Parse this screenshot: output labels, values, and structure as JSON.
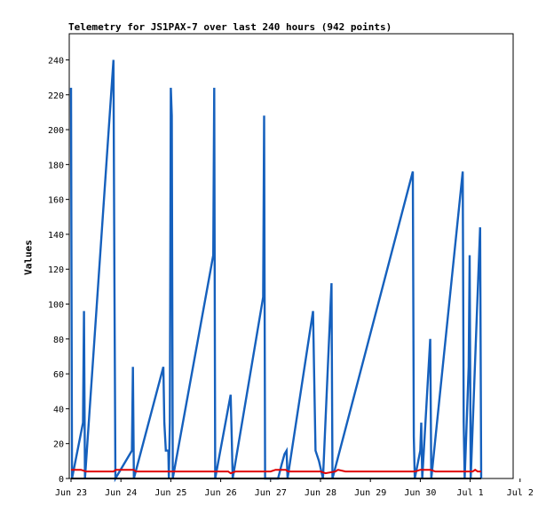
{
  "chart_data": {
    "type": "line",
    "title": "Telemetry for JS1PAX-7 over last 240 hours (942 points)",
    "xlabel": "",
    "ylabel": "Values",
    "x_ticks": [
      "Jun 23",
      "Jun 24",
      "Jun 25",
      "Jun 26",
      "Jun 27",
      "Jun 28",
      "Jun 29",
      "Jun 30",
      "Jul 1",
      "Jul 2"
    ],
    "y_ticks": [
      0,
      20,
      40,
      60,
      80,
      100,
      120,
      140,
      160,
      180,
      200,
      220,
      240
    ],
    "xlim": [
      0,
      9.0
    ],
    "ylim": [
      0,
      255
    ],
    "grid": false,
    "series": [
      {
        "color": "#1560bd",
        "points": [
          [
            0.0,
            224
          ],
          [
            0.02,
            0
          ],
          [
            0.24,
            32
          ],
          [
            0.26,
            96
          ],
          [
            0.28,
            0
          ],
          [
            0.85,
            240
          ],
          [
            0.87,
            112
          ],
          [
            0.89,
            0
          ],
          [
            1.22,
            16
          ],
          [
            1.24,
            64
          ],
          [
            1.26,
            0
          ],
          [
            1.85,
            64
          ],
          [
            1.87,
            32
          ],
          [
            1.9,
            16
          ],
          [
            1.95,
            16
          ],
          [
            1.96,
            0
          ],
          [
            1.98,
            32
          ],
          [
            2.0,
            224
          ],
          [
            2.02,
            208
          ],
          [
            2.04,
            0
          ],
          [
            2.85,
            128
          ],
          [
            2.87,
            224
          ],
          [
            2.89,
            0
          ],
          [
            3.2,
            48
          ],
          [
            3.22,
            24
          ],
          [
            3.24,
            0
          ],
          [
            3.85,
            104
          ],
          [
            3.87,
            208
          ],
          [
            3.89,
            0
          ],
          [
            4.15,
            0
          ],
          [
            4.22,
            8
          ],
          [
            4.28,
            14
          ],
          [
            4.32,
            16
          ],
          [
            4.34,
            0
          ],
          [
            4.85,
            96
          ],
          [
            4.87,
            64
          ],
          [
            4.9,
            16
          ],
          [
            4.97,
            10
          ],
          [
            5.05,
            0
          ],
          [
            5.22,
            112
          ],
          [
            5.24,
            0
          ],
          [
            6.85,
            176
          ],
          [
            6.87,
            24
          ],
          [
            6.89,
            0
          ],
          [
            7.0,
            16
          ],
          [
            7.02,
            32
          ],
          [
            7.04,
            0
          ],
          [
            7.2,
            80
          ],
          [
            7.22,
            0
          ],
          [
            7.85,
            176
          ],
          [
            7.87,
            32
          ],
          [
            7.89,
            0
          ],
          [
            7.97,
            64
          ],
          [
            7.99,
            128
          ],
          [
            8.01,
            0
          ],
          [
            8.2,
            144
          ],
          [
            8.22,
            0
          ]
        ]
      },
      {
        "color": "#e00000",
        "points": [
          [
            0.0,
            5
          ],
          [
            0.2,
            5
          ],
          [
            0.3,
            4
          ],
          [
            0.85,
            4
          ],
          [
            0.9,
            5
          ],
          [
            1.25,
            5
          ],
          [
            1.3,
            4
          ],
          [
            3.15,
            4
          ],
          [
            3.2,
            3
          ],
          [
            3.3,
            4
          ],
          [
            4.0,
            4
          ],
          [
            4.1,
            5
          ],
          [
            4.3,
            5
          ],
          [
            4.35,
            4
          ],
          [
            5.0,
            4
          ],
          [
            5.1,
            3
          ],
          [
            5.3,
            4
          ],
          [
            5.35,
            5
          ],
          [
            5.5,
            4
          ],
          [
            6.9,
            4
          ],
          [
            7.0,
            5
          ],
          [
            7.2,
            5
          ],
          [
            7.3,
            4
          ],
          [
            8.05,
            4
          ],
          [
            8.1,
            5
          ],
          [
            8.15,
            4
          ],
          [
            8.22,
            4
          ]
        ]
      },
      {
        "color": "#000000",
        "points": [
          [
            0.0,
            0
          ],
          [
            8.22,
            0
          ]
        ]
      }
    ]
  }
}
